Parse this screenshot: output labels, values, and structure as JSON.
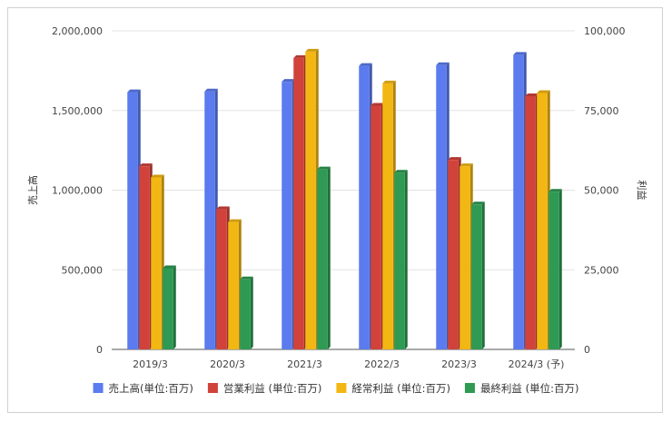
{
  "chart_data": {
    "type": "bar",
    "categories": [
      "2019/3",
      "2020/3",
      "2021/3",
      "2022/3",
      "2023/3",
      "2024/3 (予)"
    ],
    "series": [
      {
        "name": "売上高(単位:百万)",
        "axis": "left",
        "color": "#5b7bee",
        "values": [
          1615000,
          1620000,
          1680000,
          1780000,
          1785000,
          1850000
        ]
      },
      {
        "name": "営業利益 (単位:百万)",
        "axis": "right",
        "color": "#d1423b",
        "values": [
          57500,
          44000,
          91500,
          76500,
          59500,
          79500
        ]
      },
      {
        "name": "経常利益 (単位:百万)",
        "axis": "right",
        "color": "#f2b713",
        "values": [
          54000,
          40000,
          93500,
          83500,
          57500,
          80500
        ]
      },
      {
        "name": "最終利益 (単位:百万)",
        "axis": "right",
        "color": "#2e9a53",
        "values": [
          25500,
          22000,
          56500,
          55500,
          45500,
          49500
        ]
      }
    ],
    "ylabel_left": "売上高",
    "ylabel_right": "利益",
    "ylim_left": [
      0,
      2000000
    ],
    "ylim_right": [
      0,
      100000
    ],
    "yticks_left": [
      "0",
      "500,000",
      "1,000,000",
      "1,500,000",
      "2,000,000"
    ],
    "yticks_right": [
      "0",
      "25,000",
      "50,000",
      "75,000",
      "100,000"
    ],
    "grid": true,
    "legend_position": "bottom"
  }
}
